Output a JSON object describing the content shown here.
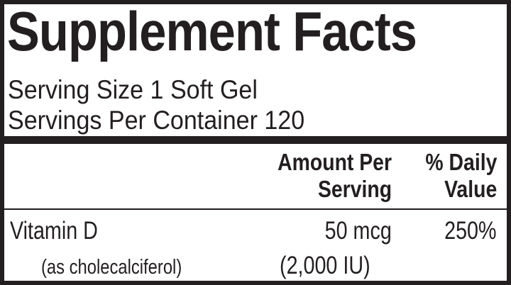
{
  "title": "Supplement Facts",
  "serving_size": "Serving Size 1 Soft Gel",
  "servings_per_container": "Servings Per Container 120",
  "columns": {
    "amount_line1": "Amount Per",
    "amount_line2": "Serving",
    "dv_line1": "% Daily",
    "dv_line2": "Value"
  },
  "nutrients": [
    {
      "name": "Vitamin D",
      "source": "(as cholecalciferol)",
      "amount": "50 mcg",
      "amount_alt": "(2,000 IU)",
      "daily_value": "250%"
    }
  ],
  "colors": {
    "ink": "#231f20",
    "background": "#ffffff"
  }
}
